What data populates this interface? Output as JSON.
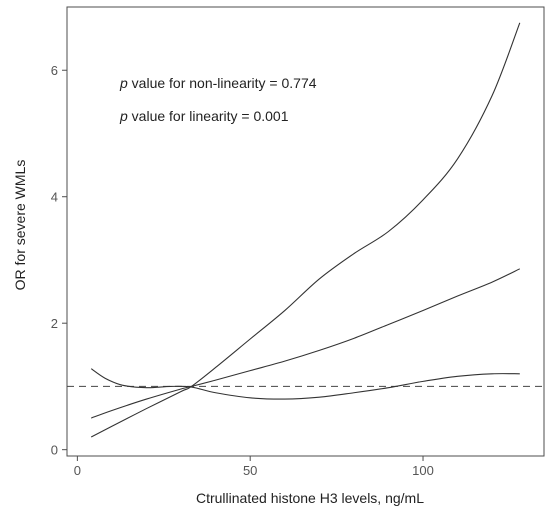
{
  "chart_data": {
    "type": "line",
    "title": "",
    "xlabel": "Ctrullinated histone H3 levels, ng/mL",
    "ylabel": "OR for severe WMLs",
    "xlim": [
      -3,
      135
    ],
    "ylim": [
      -0.1,
      7.0
    ],
    "x_ticks": [
      0,
      50,
      100
    ],
    "y_ticks": [
      0,
      2,
      4,
      6
    ],
    "reference_line": {
      "y": 1,
      "style": "dashed"
    },
    "annotations": [
      {
        "italic": "p",
        "text": " value for non-linearity = 0.774"
      },
      {
        "italic": "p",
        "text": " value for linearity = 0.001"
      }
    ],
    "grid": false,
    "legend": "none",
    "series": [
      {
        "role": "upper-ci",
        "points": [
          [
            4,
            0.2
          ],
          [
            10,
            0.37
          ],
          [
            20,
            0.65
          ],
          [
            30,
            0.92
          ],
          [
            33,
            1.0
          ],
          [
            40,
            1.3
          ],
          [
            50,
            1.75
          ],
          [
            60,
            2.2
          ],
          [
            70,
            2.7
          ],
          [
            80,
            3.1
          ],
          [
            90,
            3.45
          ],
          [
            100,
            3.95
          ],
          [
            110,
            4.6
          ],
          [
            120,
            5.6
          ],
          [
            128,
            6.75
          ]
        ]
      },
      {
        "role": "estimate",
        "points": [
          [
            4,
            0.5
          ],
          [
            10,
            0.62
          ],
          [
            20,
            0.8
          ],
          [
            30,
            0.96
          ],
          [
            33,
            1.0
          ],
          [
            40,
            1.1
          ],
          [
            50,
            1.25
          ],
          [
            60,
            1.4
          ],
          [
            70,
            1.57
          ],
          [
            80,
            1.76
          ],
          [
            90,
            1.98
          ],
          [
            100,
            2.2
          ],
          [
            110,
            2.43
          ],
          [
            120,
            2.65
          ],
          [
            128,
            2.86
          ]
        ]
      },
      {
        "role": "lower-ci",
        "points": [
          [
            4,
            1.28
          ],
          [
            8,
            1.13
          ],
          [
            13,
            1.02
          ],
          [
            20,
            0.98
          ],
          [
            27,
            1.0
          ],
          [
            33,
            0.99
          ],
          [
            40,
            0.9
          ],
          [
            50,
            0.82
          ],
          [
            60,
            0.8
          ],
          [
            70,
            0.83
          ],
          [
            80,
            0.9
          ],
          [
            90,
            0.98
          ],
          [
            100,
            1.08
          ],
          [
            110,
            1.16
          ],
          [
            120,
            1.2
          ],
          [
            128,
            1.2
          ]
        ]
      }
    ]
  },
  "colors": {
    "curve": "#333333",
    "axis": "#4d4d4d",
    "reference": "#444444"
  }
}
